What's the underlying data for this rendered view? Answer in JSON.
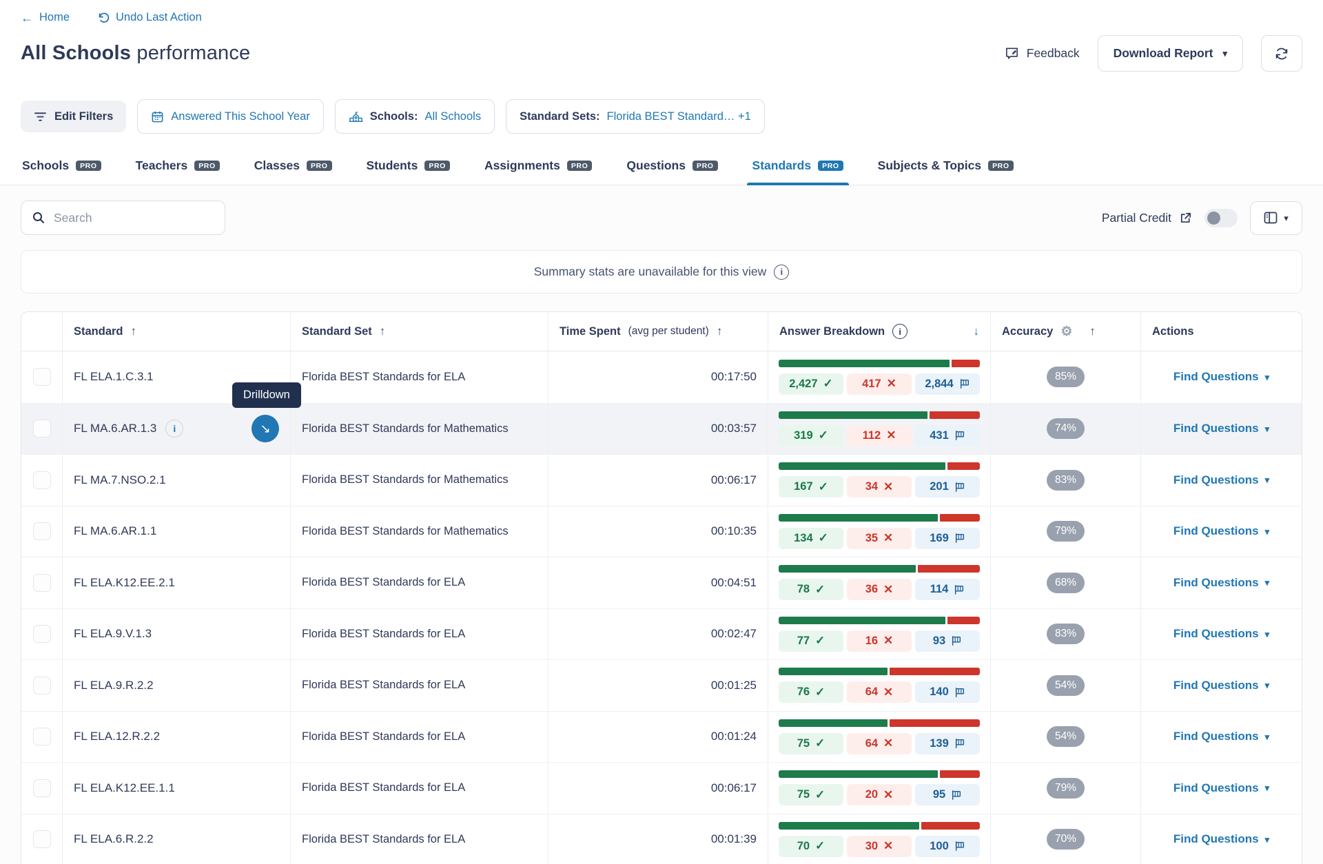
{
  "header": {
    "home_label": "Home",
    "undo_label": "Undo Last Action",
    "title_bold": "All Schools",
    "title_rest": "performance",
    "feedback_label": "Feedback",
    "download_report_label": "Download Report"
  },
  "filters": {
    "edit_filters_label": "Edit Filters",
    "chips": [
      {
        "prefix": "",
        "value": "Answered This School Year"
      },
      {
        "prefix": "Schools:",
        "value": "All Schools"
      },
      {
        "prefix": "Standard Sets:",
        "value": "Florida BEST Standard… +1"
      }
    ]
  },
  "pro_badge_text": "PRO",
  "tabs": [
    {
      "label": "Schools"
    },
    {
      "label": "Teachers"
    },
    {
      "label": "Classes"
    },
    {
      "label": "Students"
    },
    {
      "label": "Assignments"
    },
    {
      "label": "Questions"
    },
    {
      "label": "Standards"
    },
    {
      "label": "Subjects & Topics"
    }
  ],
  "active_tab_index": 6,
  "toolbar": {
    "search_placeholder": "Search",
    "partial_credit_label": "Partial Credit"
  },
  "banner": {
    "text": "Summary stats are unavailable for this view"
  },
  "tooltip": {
    "text": "Drilldown"
  },
  "table": {
    "columns": {
      "standard": "Standard",
      "standard_set": "Standard Set",
      "time_spent": "Time Spent",
      "time_spent_note": "(avg per student)",
      "answer_breakdown": "Answer Breakdown",
      "accuracy": "Accuracy",
      "actions": "Actions"
    },
    "actions_button_label": "Find Questions",
    "rows": [
      {
        "standard": "FL ELA.1.C.3.1",
        "standard_set": "Florida BEST Standards for ELA",
        "time_spent": "00:17:50",
        "correct": "2,427",
        "incorrect": "417",
        "total": "2,844",
        "accuracy": "85%"
      },
      {
        "standard": "FL MA.6.AR.1.3",
        "standard_set": "Florida BEST Standards for Mathematics",
        "time_spent": "00:03:57",
        "correct": "319",
        "incorrect": "112",
        "total": "431",
        "accuracy": "74%",
        "has_drilldown": true,
        "highlighted": true,
        "show_tooltip": true
      },
      {
        "standard": "FL MA.7.NSO.2.1",
        "standard_set": "Florida BEST Standards for Mathematics",
        "time_spent": "00:06:17",
        "correct": "167",
        "incorrect": "34",
        "total": "201",
        "accuracy": "83%"
      },
      {
        "standard": "FL MA.6.AR.1.1",
        "standard_set": "Florida BEST Standards for Mathematics",
        "time_spent": "00:10:35",
        "correct": "134",
        "incorrect": "35",
        "total": "169",
        "accuracy": "79%"
      },
      {
        "standard": "FL ELA.K12.EE.2.1",
        "standard_set": "Florida BEST Standards for ELA",
        "time_spent": "00:04:51",
        "correct": "78",
        "incorrect": "36",
        "total": "114",
        "accuracy": "68%"
      },
      {
        "standard": "FL ELA.9.V.1.3",
        "standard_set": "Florida BEST Standards for ELA",
        "time_spent": "00:02:47",
        "correct": "77",
        "incorrect": "16",
        "total": "93",
        "accuracy": "83%"
      },
      {
        "standard": "FL ELA.9.R.2.2",
        "standard_set": "Florida BEST Standards for ELA",
        "time_spent": "00:01:25",
        "correct": "76",
        "incorrect": "64",
        "total": "140",
        "accuracy": "54%"
      },
      {
        "standard": "FL ELA.12.R.2.2",
        "standard_set": "Florida BEST Standards for ELA",
        "time_spent": "00:01:24",
        "correct": "75",
        "incorrect": "64",
        "total": "139",
        "accuracy": "54%"
      },
      {
        "standard": "FL ELA.K12.EE.1.1",
        "standard_set": "Florida BEST Standards for ELA",
        "time_spent": "00:06:17",
        "correct": "75",
        "incorrect": "20",
        "total": "95",
        "accuracy": "79%"
      },
      {
        "standard": "FL ELA.6.R.2.2",
        "standard_set": "Florida BEST Standards for ELA",
        "time_spent": "00:01:39",
        "correct": "70",
        "incorrect": "30",
        "total": "100",
        "accuracy": "70%"
      }
    ]
  },
  "colors": {
    "accent_blue": "#2077B4",
    "navy_text": "#2E3A59",
    "bar_green": "#1E7B4C",
    "bar_red": "#CE352B",
    "accuracy_pill_grey": "#99A1AE",
    "tooltip_bg": "#20304E"
  }
}
